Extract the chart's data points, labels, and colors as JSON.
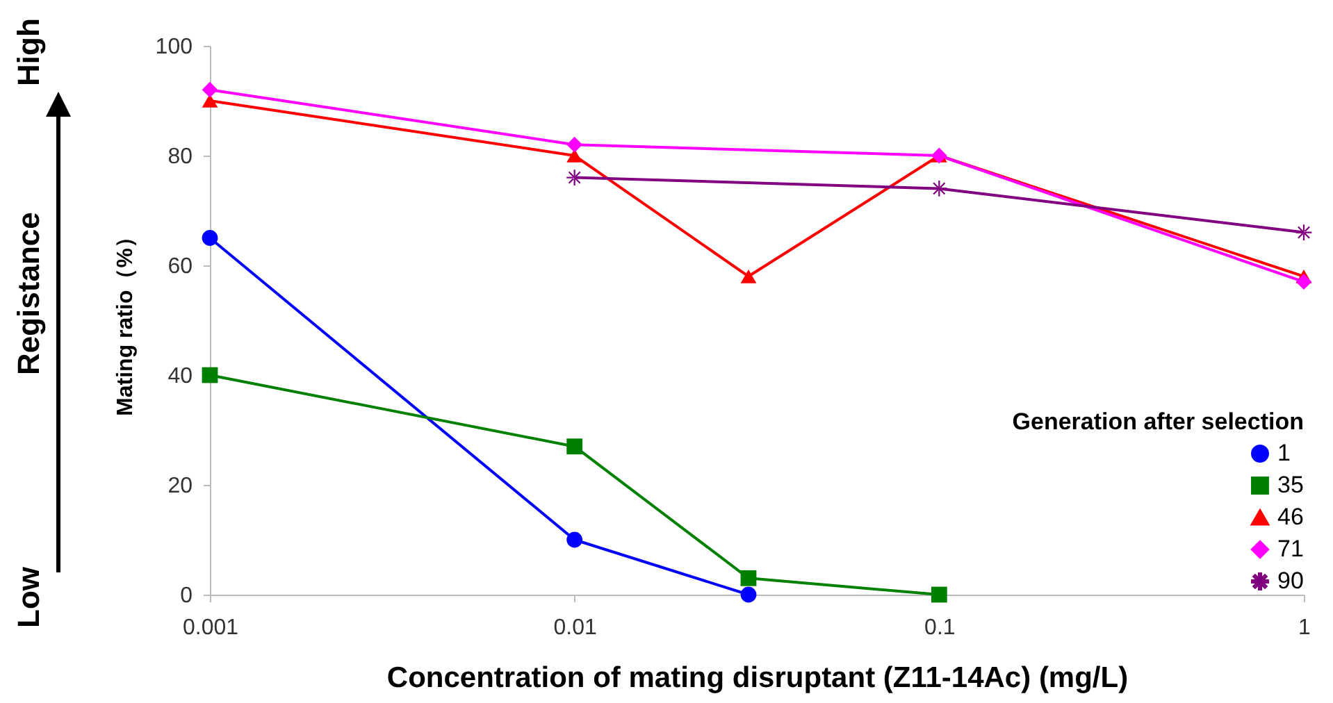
{
  "chart_data": {
    "type": "line",
    "xlabel": "Concentration of mating disruptant (Z11-14Ac) (mg/L)",
    "ylabel": "Mating ratio（%）",
    "legend_title": "Generation after selection",
    "annotations": [
      "High",
      "Registance",
      "Low"
    ],
    "x": [
      0.001,
      0.01,
      0.03,
      0.1,
      1
    ],
    "series": [
      {
        "name": "1",
        "color": "#0000ff",
        "marker": "circle",
        "values": [
          65,
          10,
          0,
          null,
          null
        ]
      },
      {
        "name": "35",
        "color": "#008000",
        "marker": "square",
        "values": [
          40,
          27,
          3,
          0,
          null
        ]
      },
      {
        "name": "46",
        "color": "#ff0000",
        "marker": "triangle",
        "values": [
          90,
          80,
          58,
          80,
          58
        ]
      },
      {
        "name": "71",
        "color": "#ff00ff",
        "marker": "diamond",
        "values": [
          92,
          82,
          null,
          80,
          57
        ]
      },
      {
        "name": "90",
        "color": "#800080",
        "marker": "cross",
        "values": [
          null,
          76,
          null,
          74,
          66
        ]
      }
    ],
    "log": "x",
    "xlim": [
      0.001,
      1
    ],
    "xticks": [
      0.001,
      0.01,
      0.1,
      1
    ],
    "ylim": [
      0,
      100
    ],
    "yticks": [
      0,
      20,
      40,
      60,
      80,
      100
    ],
    "legend": "bottom right"
  }
}
